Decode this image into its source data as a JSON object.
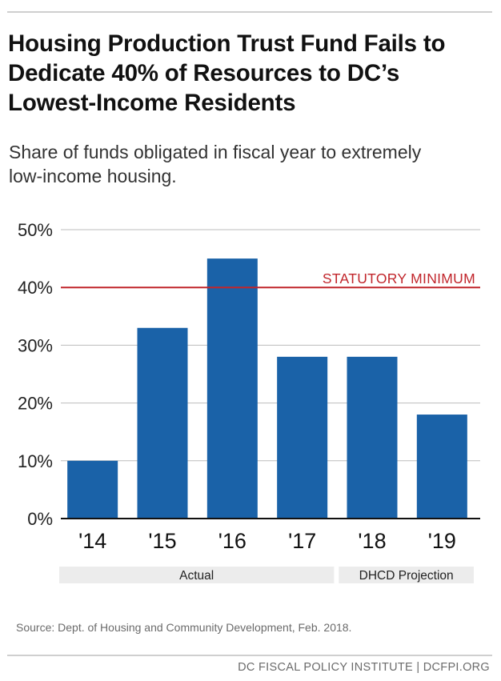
{
  "header": {
    "title": "Housing Production Trust Fund Fails to Dedicate 40% of Resources to DC’s Lowest-Income Residents",
    "subtitle": "Share of funds obligated in fiscal year to extremely low-income housing."
  },
  "chart_data": {
    "type": "bar",
    "categories": [
      "'14",
      "'15",
      "'16",
      "'17",
      "'18",
      "'19"
    ],
    "values": [
      10,
      33,
      45,
      28,
      28,
      18
    ],
    "ylim": [
      0,
      50
    ],
    "yticks": [
      0,
      10,
      20,
      30,
      40,
      50
    ],
    "ytick_labels": [
      "0%",
      "10%",
      "20%",
      "30%",
      "40%",
      "50%"
    ],
    "grid": true,
    "bar_color": "#1a62a8",
    "reference_line": {
      "value": 40,
      "label": "STATUTORY MINIMUM",
      "color": "#c1262c"
    },
    "groups": [
      {
        "label": "Actual",
        "categories": [
          "'14",
          "'15",
          "'16",
          "'17"
        ]
      },
      {
        "label": "DHCD Projection",
        "categories": [
          "'18",
          "'19"
        ]
      }
    ]
  },
  "source": "Source: Dept. of Housing and Community Development, Feb. 2018.",
  "footer": "DC FISCAL POLICY INSTITUTE | DCFPI.ORG"
}
